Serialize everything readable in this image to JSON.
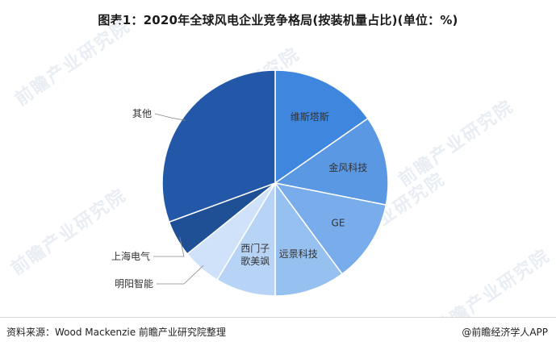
{
  "title": "图表1：2020年全球风电企业竞争格局(按装机量占比)(单位：%)",
  "watermark": "前瞻产业研究院",
  "footer": {
    "source": "资料来源：Wood Mackenzie 前瞻产业研究院整理",
    "credit": "@前瞻经济学人APP"
  },
  "colors": {
    "slices": [
      "#3f86de",
      "#5b98e3",
      "#78acea",
      "#96c0f0",
      "#b7d4f6",
      "#cfe2fa",
      "#1f4f95",
      "#2358a8"
    ],
    "label_dark": "#333333",
    "label_light": "#ffffff",
    "leader": "#888888"
  },
  "chart_data": {
    "type": "pie",
    "title": "图表1：2020年全球风电企业竞争格局(按装机量占比)(单位：%)",
    "start_angle_deg": 0,
    "direction": "clockwise",
    "labels": [
      "维斯塔斯",
      "金风科技",
      "GE",
      "远景科技",
      "西门子歌美飒",
      "明阳智能",
      "上海电气",
      "其他"
    ],
    "display_labels": [
      [
        "维斯塔斯"
      ],
      [
        "金风科技"
      ],
      [
        "GE"
      ],
      [
        "远景科技"
      ],
      [
        "西门子",
        "歌美飒"
      ],
      [
        "明阳智能"
      ],
      [
        "上海电气"
      ],
      [
        "其他"
      ]
    ],
    "values": [
      15.3,
      12.8,
      11.8,
      10.1,
      8.6,
      5.6,
      5.2,
      30.6
    ],
    "label_placement": [
      "inside",
      "inside",
      "inside",
      "inside",
      "inside",
      "outside",
      "outside",
      "outside"
    ]
  }
}
